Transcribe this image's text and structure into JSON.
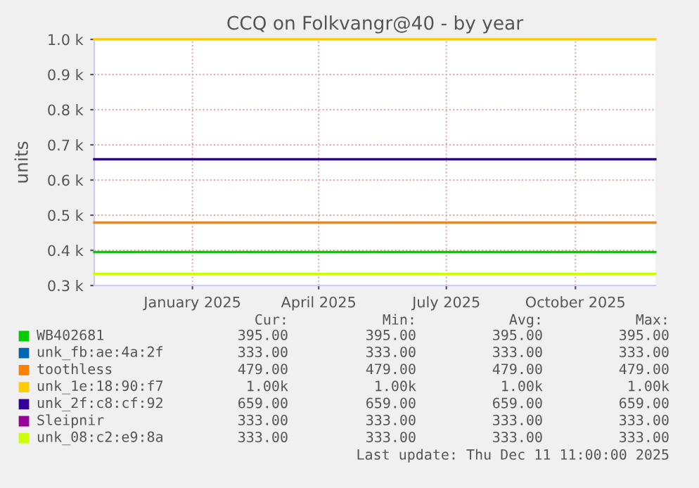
{
  "chart_data": {
    "type": "line",
    "title": "CCQ on Folkvangr@40 - by year",
    "ylabel": "units",
    "x": [
      "2024-11-06",
      "2025-12-11"
    ],
    "xlim": [
      "2024-11-06",
      "2025-12-11"
    ],
    "xticks": [
      {
        "value": "2025-01-15",
        "label": "January 2025"
      },
      {
        "value": "2025-04-15",
        "label": "April 2025"
      },
      {
        "value": "2025-07-15",
        "label": "July 2025"
      },
      {
        "value": "2025-10-15",
        "label": "October 2025"
      }
    ],
    "ylim": [
      300,
      1000
    ],
    "yticks": [
      {
        "value": 300,
        "label": "0.3 k"
      },
      {
        "value": 400,
        "label": "0.4 k"
      },
      {
        "value": 500,
        "label": "0.5 k"
      },
      {
        "value": 600,
        "label": "0.6 k"
      },
      {
        "value": 700,
        "label": "0.7 k"
      },
      {
        "value": 800,
        "label": "0.8 k"
      },
      {
        "value": 900,
        "label": "0.9 k"
      },
      {
        "value": 1000,
        "label": "1.0 k"
      }
    ],
    "grid": true,
    "legend": "bottom",
    "line_style": "solid",
    "marker": "none",
    "series": [
      {
        "name": "WB402681",
        "color": "#00cc00",
        "values": [
          395,
          395
        ]
      },
      {
        "name": "unk_fb:ae:4a:2f",
        "color": "#0066b3",
        "values": [
          null,
          null
        ]
      },
      {
        "name": "toothless",
        "color": "#ff8000",
        "values": [
          479,
          479
        ]
      },
      {
        "name": "unk_1e:18:90:f7",
        "color": "#ffcc00",
        "values": [
          1000,
          1000
        ]
      },
      {
        "name": "unk_2f:c8:cf:92",
        "color": "#330099",
        "values": [
          659,
          659
        ]
      },
      {
        "name": "Sleipnir",
        "color": "#990099",
        "values": [
          null,
          null
        ]
      },
      {
        "name": "unk_08:c2:e9:8a",
        "color": "#ccff00",
        "values": [
          333,
          333
        ]
      }
    ],
    "annotations": [
      "Cur:",
      "Min:",
      "Avg:",
      "Max:",
      "395.00",
      "395.00",
      "395.00",
      "395.00",
      "333.00",
      "333.00",
      "333.00",
      "333.00",
      "479.00",
      "479.00",
      "479.00",
      "479.00",
      "1.00k",
      "1.00k",
      "1.00k",
      "1.00k",
      "659.00",
      "659.00",
      "659.00",
      "659.00",
      "333.00",
      "333.00",
      "333.00",
      "333.00",
      "333.00",
      "333.00",
      "333.00",
      "333.00",
      "Last update: Thu Dec 11 11:00:00 2025"
    ]
  }
}
